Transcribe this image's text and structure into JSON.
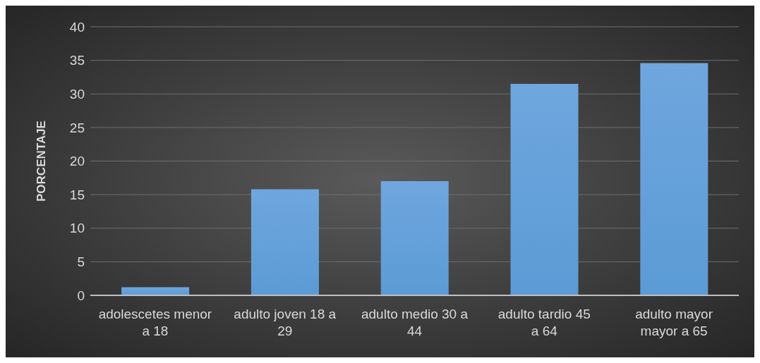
{
  "chart_data": {
    "type": "bar",
    "ylabel": "PORCENTAJE",
    "categories": [
      "adolescetes menor a 18",
      "adulto joven 18 a 29",
      "adulto medio 30 a 44",
      "adulto tardio 45 a 64",
      "adulto mayor mayor a 65"
    ],
    "values": [
      1.2,
      15.8,
      17.0,
      31.5,
      34.6
    ],
    "color": "#5b9bd5",
    "ylim": [
      0,
      40
    ],
    "yticks": [
      0,
      5,
      10,
      15,
      20,
      25,
      30,
      35,
      40
    ],
    "grid": "y",
    "legend": false
  }
}
